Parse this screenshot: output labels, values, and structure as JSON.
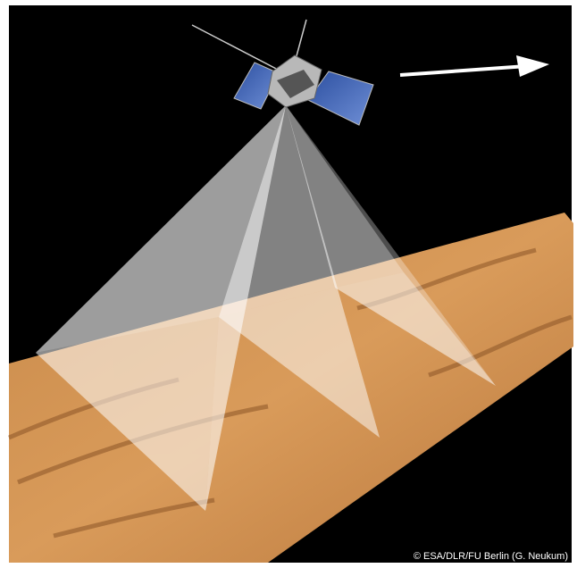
{
  "caption": {
    "credit": "© ESA/DLR/FU Berlin (G. Neukum)"
  }
}
